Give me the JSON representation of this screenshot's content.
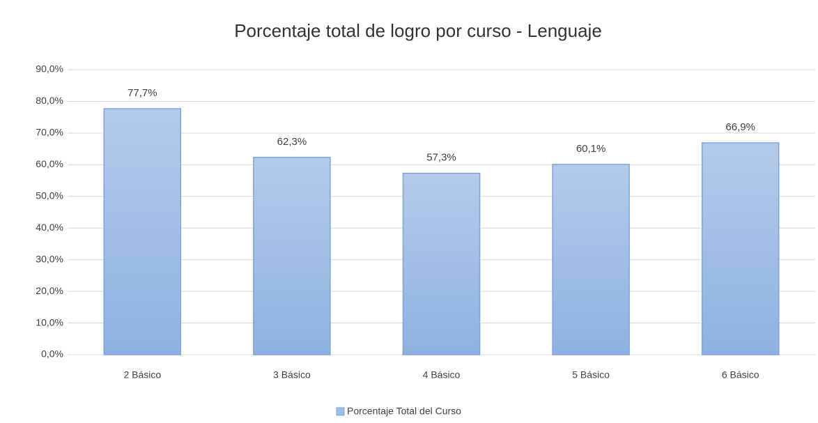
{
  "chart_data": {
    "type": "bar",
    "title": "Porcentaje total de logro por curso - Lenguaje",
    "categories": [
      "2 Básico",
      "3 Básico",
      "4 Básico",
      "5 Básico",
      "6 Básico"
    ],
    "series": [
      {
        "name": "Porcentaje Total del Curso",
        "color": "#9dbde6",
        "values": [
          77.7,
          62.3,
          57.3,
          60.1,
          66.9
        ],
        "value_labels": [
          "77,7%",
          "62,3%",
          "57,3%",
          "60,1%",
          "66,9%"
        ]
      }
    ],
    "ylim": [
      0,
      90
    ],
    "yticks": [
      {
        "value": 0,
        "label": "0,0%"
      },
      {
        "value": 10,
        "label": "10,0%"
      },
      {
        "value": 20,
        "label": "20,0%"
      },
      {
        "value": 30,
        "label": "30,0%"
      },
      {
        "value": 40,
        "label": "40,0%"
      },
      {
        "value": 50,
        "label": "50,0%"
      },
      {
        "value": 60,
        "label": "60,0%"
      },
      {
        "value": 70,
        "label": "70,0%"
      },
      {
        "value": 80,
        "label": "80,0%"
      },
      {
        "value": 90,
        "label": "90,0%"
      }
    ],
    "grid": true,
    "legend": "bottom"
  }
}
